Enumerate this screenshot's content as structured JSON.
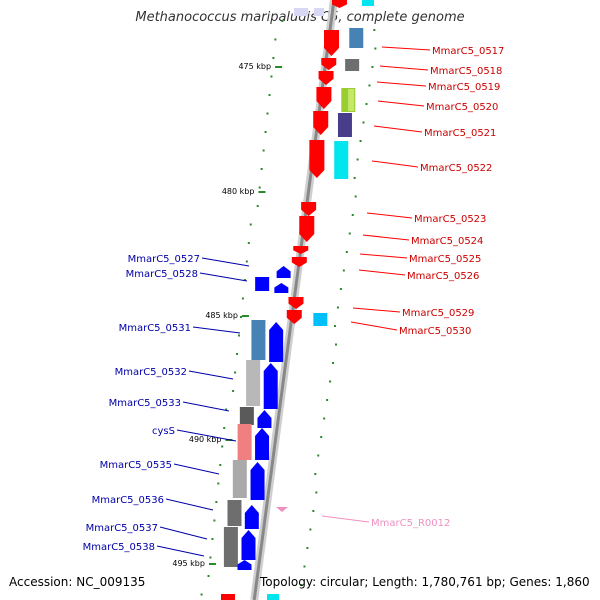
{
  "title": "Methanococcus maripaludis C5, complete genome",
  "footer": {
    "accession": "Accession: NC_009135",
    "topology": "Topology: circular; Length: 1,780,761 bp; Genes: 1,860"
  },
  "colors": {
    "forward": "#0000ff",
    "reverse": "#ff0000",
    "forward_label": "#0000aa",
    "reverse_label": "#cc0000",
    "rna": "#f090c0",
    "backbone": "#888888",
    "tick": "#2a8a2a"
  },
  "kbp_labels": [
    "475 kbp",
    "480 kbp",
    "485 kbp",
    "490 kbp",
    "495 kbp"
  ],
  "reverse_genes": [
    {
      "name": "MmarC5_0517"
    },
    {
      "name": "MmarC5_0518"
    },
    {
      "name": "MmarC5_0519"
    },
    {
      "name": "MmarC5_0520"
    },
    {
      "name": "MmarC5_0521"
    },
    {
      "name": "MmarC5_0522"
    },
    {
      "name": "MmarC5_0523"
    },
    {
      "name": "MmarC5_0524"
    },
    {
      "name": "MmarC5_0525"
    },
    {
      "name": "MmarC5_0526"
    },
    {
      "name": "MmarC5_0529"
    },
    {
      "name": "MmarC5_0530"
    }
  ],
  "forward_genes": [
    {
      "name": "MmarC5_0527"
    },
    {
      "name": "MmarC5_0528"
    },
    {
      "name": "MmarC5_0531"
    },
    {
      "name": "MmarC5_0532"
    },
    {
      "name": "MmarC5_0533"
    },
    {
      "name": "cysS"
    },
    {
      "name": "MmarC5_0535"
    },
    {
      "name": "MmarC5_0536"
    },
    {
      "name": "MmarC5_0537"
    },
    {
      "name": "MmarC5_0538"
    }
  ],
  "rna_genes": [
    {
      "name": "MmarC5_R0012"
    }
  ]
}
